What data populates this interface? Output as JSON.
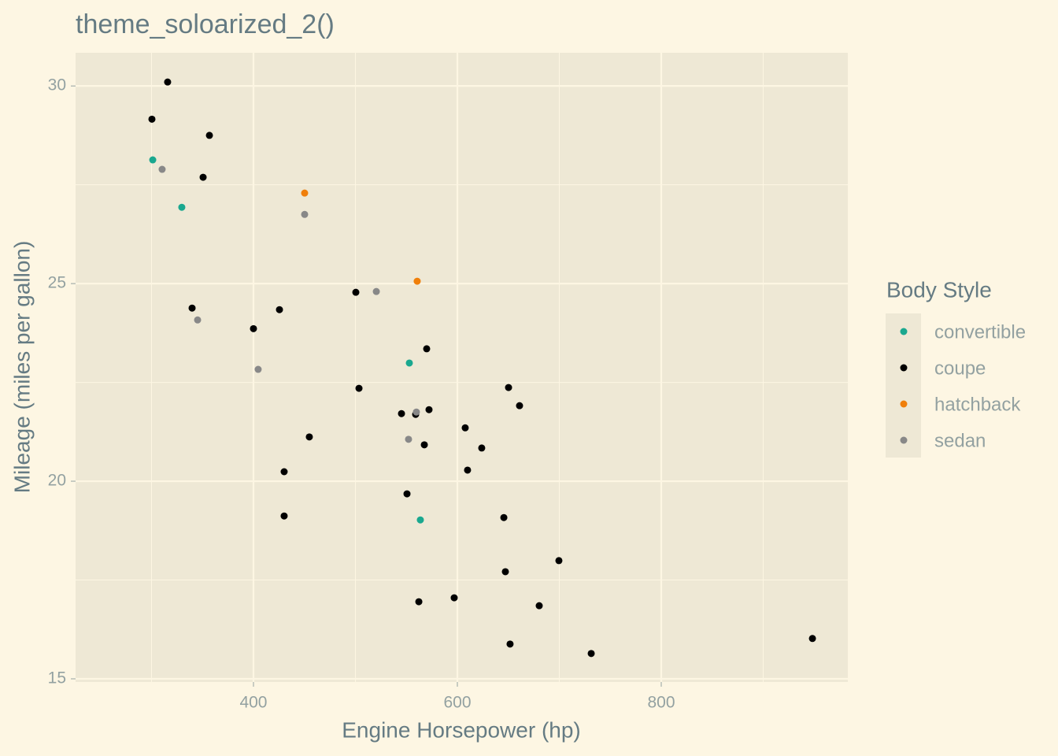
{
  "chart_data": {
    "type": "scatter",
    "title": "theme_soloarized_2()",
    "x_label": "Engine Horsepower (hp)",
    "y_label": "Mileage (miles per gallon)",
    "legend_title": "Body Style",
    "legend": "right",
    "grid": true,
    "xlim": [
      225.5,
      983
    ],
    "ylim": [
      14.92,
      30.84
    ],
    "xticks": [
      400,
      600,
      800
    ],
    "yticks": [
      15,
      20,
      25,
      30
    ],
    "xminor": [
      300,
      500,
      700,
      900
    ],
    "yminor": [
      17.5,
      22.5,
      27.5
    ],
    "series": [
      {
        "name": "convertible",
        "color": "#1aa88f",
        "x": [
          301.2,
          329.7,
          552.9,
          563.7
        ],
        "values": [
          28.13,
          26.93,
          22.99,
          19.02
        ]
      },
      {
        "name": "coupe",
        "color": "#000000",
        "x": [
          315.8,
          300.4,
          356.8,
          350.6,
          339.8,
          425.5,
          500.4,
          400,
          569.9,
          503.5,
          650.2,
          661.0,
          545.2,
          559.1,
          572.2,
          607.7,
          454.8,
          567.6,
          623.9,
          610.0,
          430.1,
          550.6,
          430.1,
          645.6,
          699.6,
          647.1,
          596.9,
          562.2,
          680.3,
          651.7,
          731.3,
          948.3
        ],
        "values": [
          30.1,
          29.16,
          28.75,
          27.69,
          24.38,
          24.34,
          24.78,
          23.86,
          23.35,
          22.35,
          22.37,
          21.91,
          21.71,
          21.69,
          21.81,
          21.35,
          21.12,
          20.92,
          20.84,
          20.28,
          20.24,
          19.68,
          19.12,
          19.08,
          17.99,
          17.71,
          17.05,
          16.95,
          16.85,
          15.88,
          15.64,
          16.02
        ]
      },
      {
        "name": "hatchback",
        "color": "#f07f0a",
        "x": [
          450.2,
          560.6
        ],
        "values": [
          27.29,
          25.06
        ]
      },
      {
        "name": "sedan",
        "color": "#888888",
        "x": [
          310.4,
          450.2,
          520.5,
          345.2,
          404.6,
          559.8,
          552.1
        ],
        "values": [
          27.89,
          26.75,
          24.8,
          24.08,
          22.83,
          21.75,
          21.06
        ]
      }
    ]
  }
}
